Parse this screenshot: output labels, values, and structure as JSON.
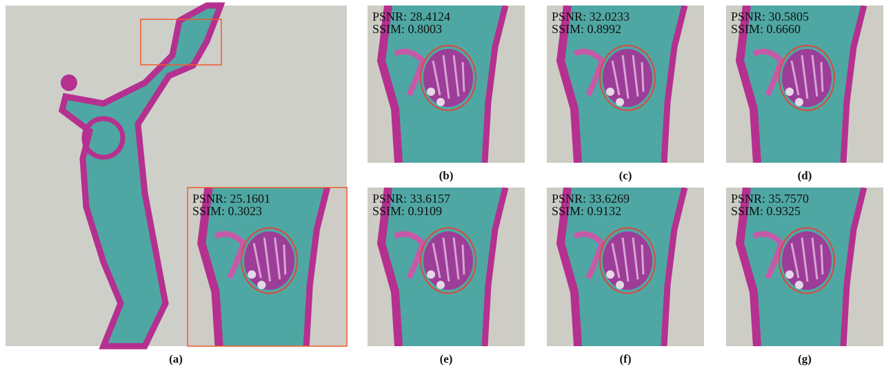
{
  "panels": [
    {
      "label": "(a)",
      "psnr": "PSNR: 25.1601",
      "ssim": "SSIM: 0.3023"
    },
    {
      "label": "(b)",
      "psnr": "PSNR: 28.4124",
      "ssim": "SSIM: 0.8003"
    },
    {
      "label": "(c)",
      "psnr": "PSNR: 32.0233",
      "ssim": "SSIM: 0.8992"
    },
    {
      "label": "(d)",
      "psnr": "PSNR: 30.5805",
      "ssim": "SSIM: 0.6660"
    },
    {
      "label": "(e)",
      "psnr": "PSNR: 33.6157",
      "ssim": "SSIM: 0.9109"
    },
    {
      "label": "(f)",
      "psnr": "PSNR: 33.6269",
      "ssim": "SSIM: 0.9132"
    },
    {
      "label": "(g)",
      "psnr": "PSNR: 35.7570",
      "ssim": "SSIM: 0.9325"
    }
  ]
}
